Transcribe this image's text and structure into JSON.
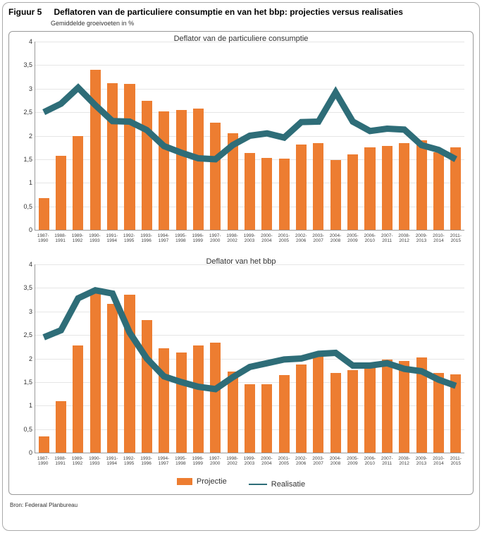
{
  "figure": {
    "label": "Figuur 5",
    "title": "Deflatoren van de particuliere consumptie en van het bbp: projecties versus realisaties",
    "subtitle": "Gemiddelde groeivoeten in %"
  },
  "chartA": {
    "title": "Deflator van de particuliere consumptie",
    "ylim": [
      0,
      4
    ],
    "yticks": [
      0,
      0.5,
      1,
      1.5,
      2,
      2.5,
      3,
      3.5,
      4
    ],
    "ytick_labels": [
      "0",
      "0,5",
      "1",
      "1,5",
      "2",
      "2,5",
      "3",
      "3,5",
      "4"
    ],
    "categories": [
      "1987-\n1990",
      "1988-\n1991",
      "1989-\n1992",
      "1990-\n1993",
      "1991-\n1994",
      "1992-\n1995",
      "1993-\n1996",
      "1994-\n1997",
      "1995-\n1998",
      "1996-\n1999",
      "1997-\n2000",
      "1998-\n2002",
      "1999-\n2003",
      "2000-\n2004",
      "2001-\n2005",
      "2002-\n2006",
      "2003-\n2007",
      "2004-\n2008",
      "2005-\n2009",
      "2006-\n2010",
      "2007-\n2011",
      "2008-\n2012",
      "2009-\n2013",
      "2010-\n2014",
      "2011-\n2015"
    ],
    "bars": [
      0.68,
      1.57,
      2.0,
      3.4,
      3.12,
      3.1,
      2.74,
      2.52,
      2.54,
      2.58,
      2.27,
      2.05,
      1.64,
      1.53,
      1.52,
      1.81,
      1.85,
      1.48,
      1.6,
      1.76,
      1.78,
      1.84,
      1.9,
      1.65,
      1.75
    ],
    "line": [
      2.5,
      2.68,
      3.02,
      2.65,
      2.31,
      2.3,
      2.12,
      1.78,
      1.64,
      1.52,
      1.5,
      1.8,
      2.0,
      2.05,
      1.96,
      2.29,
      2.3,
      2.92,
      2.3,
      2.1,
      2.15,
      2.13,
      1.8,
      1.7,
      1.5
    ],
    "bar_color": "#ed7d31",
    "line_color": "#2e6d78",
    "grid_color": "#e6e6e6"
  },
  "chartB": {
    "title": "Deflator van het bbp",
    "ylim": [
      0,
      4
    ],
    "yticks": [
      0,
      0.5,
      1,
      1.5,
      2,
      2.5,
      3,
      3.5,
      4
    ],
    "ytick_labels": [
      "0",
      "0,5",
      "1",
      "1,5",
      "2",
      "2,5",
      "3",
      "3,5",
      "4"
    ],
    "categories": [
      "1987-\n1990",
      "1988-\n1991",
      "1989-\n1992",
      "1990-\n1993",
      "1991-\n1994",
      "1992-\n1995",
      "1993-\n1996",
      "1994-\n1997",
      "1995-\n1998",
      "1996-\n1999",
      "1997-\n2000",
      "1998-\n2002",
      "1999-\n2003",
      "2000-\n2004",
      "2001-\n2005",
      "2002-\n2006",
      "2003-\n2007",
      "2004-\n2008",
      "2005-\n2009",
      "2006-\n2010",
      "2007-\n2011",
      "2008-\n2012",
      "2009-\n2013",
      "2010-\n2014",
      "2011-\n2015"
    ],
    "bars": [
      0.35,
      1.1,
      2.27,
      3.48,
      3.16,
      3.36,
      2.82,
      2.21,
      2.13,
      2.28,
      2.34,
      1.72,
      1.46,
      1.45,
      1.65,
      1.88,
      2.06,
      1.7,
      1.76,
      1.88,
      1.98,
      1.95,
      2.02,
      1.7,
      1.66
    ],
    "line": [
      2.45,
      2.6,
      3.28,
      3.45,
      3.38,
      2.55,
      2.0,
      1.62,
      1.5,
      1.4,
      1.35,
      1.6,
      1.82,
      1.9,
      1.98,
      2.0,
      2.1,
      2.12,
      1.85,
      1.85,
      1.9,
      1.78,
      1.73,
      1.55,
      1.42
    ],
    "bar_color": "#ed7d31",
    "line_color": "#2e6d78",
    "grid_color": "#e6e6e6"
  },
  "legend": {
    "projectie": "Projectie",
    "realisatie": "Realisatie"
  },
  "source": "Bron: Federaal Planbureau"
}
